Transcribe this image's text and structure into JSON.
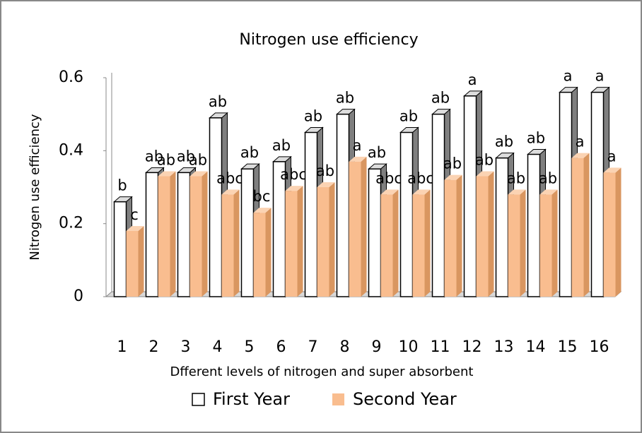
{
  "chart_data": {
    "type": "bar3d",
    "title": "Nitrogen use efficiency",
    "y_label": "Nitrogen use efficiency",
    "x_label": "Dfferent levels of nitrogen and super absorbent",
    "categories": [
      "1",
      "2",
      "3",
      "4",
      "5",
      "6",
      "7",
      "8",
      "9",
      "10",
      "11",
      "12",
      "13",
      "14",
      "15",
      "16"
    ],
    "ylim": [
      0,
      0.6
    ],
    "yticks": [
      0,
      0.2,
      0.4,
      0.6
    ],
    "series": [
      {
        "name": "First Year",
        "color": "#ffffff",
        "values": [
          0.26,
          0.34,
          0.34,
          0.49,
          0.35,
          0.37,
          0.45,
          0.5,
          0.35,
          0.45,
          0.5,
          0.55,
          0.38,
          0.39,
          0.56,
          0.56
        ],
        "letters": [
          "b",
          "ab",
          "ab",
          "ab",
          "ab",
          "ab",
          "ab",
          "ab",
          "ab",
          "ab",
          "ab",
          "a",
          "ab",
          "ab",
          "a",
          "a"
        ]
      },
      {
        "name": "Second Year",
        "color": "#f9bd8f",
        "values": [
          0.18,
          0.33,
          0.33,
          0.28,
          0.23,
          0.29,
          0.3,
          0.37,
          0.28,
          0.28,
          0.32,
          0.33,
          0.28,
          0.28,
          0.38,
          0.34
        ],
        "letters": [
          "c",
          "ab",
          "ab",
          "abc",
          "bc",
          "abc",
          "ab",
          "a",
          "abc",
          "abc",
          "ab",
          "ab",
          "ab",
          "ab",
          "a",
          "a"
        ]
      }
    ]
  }
}
